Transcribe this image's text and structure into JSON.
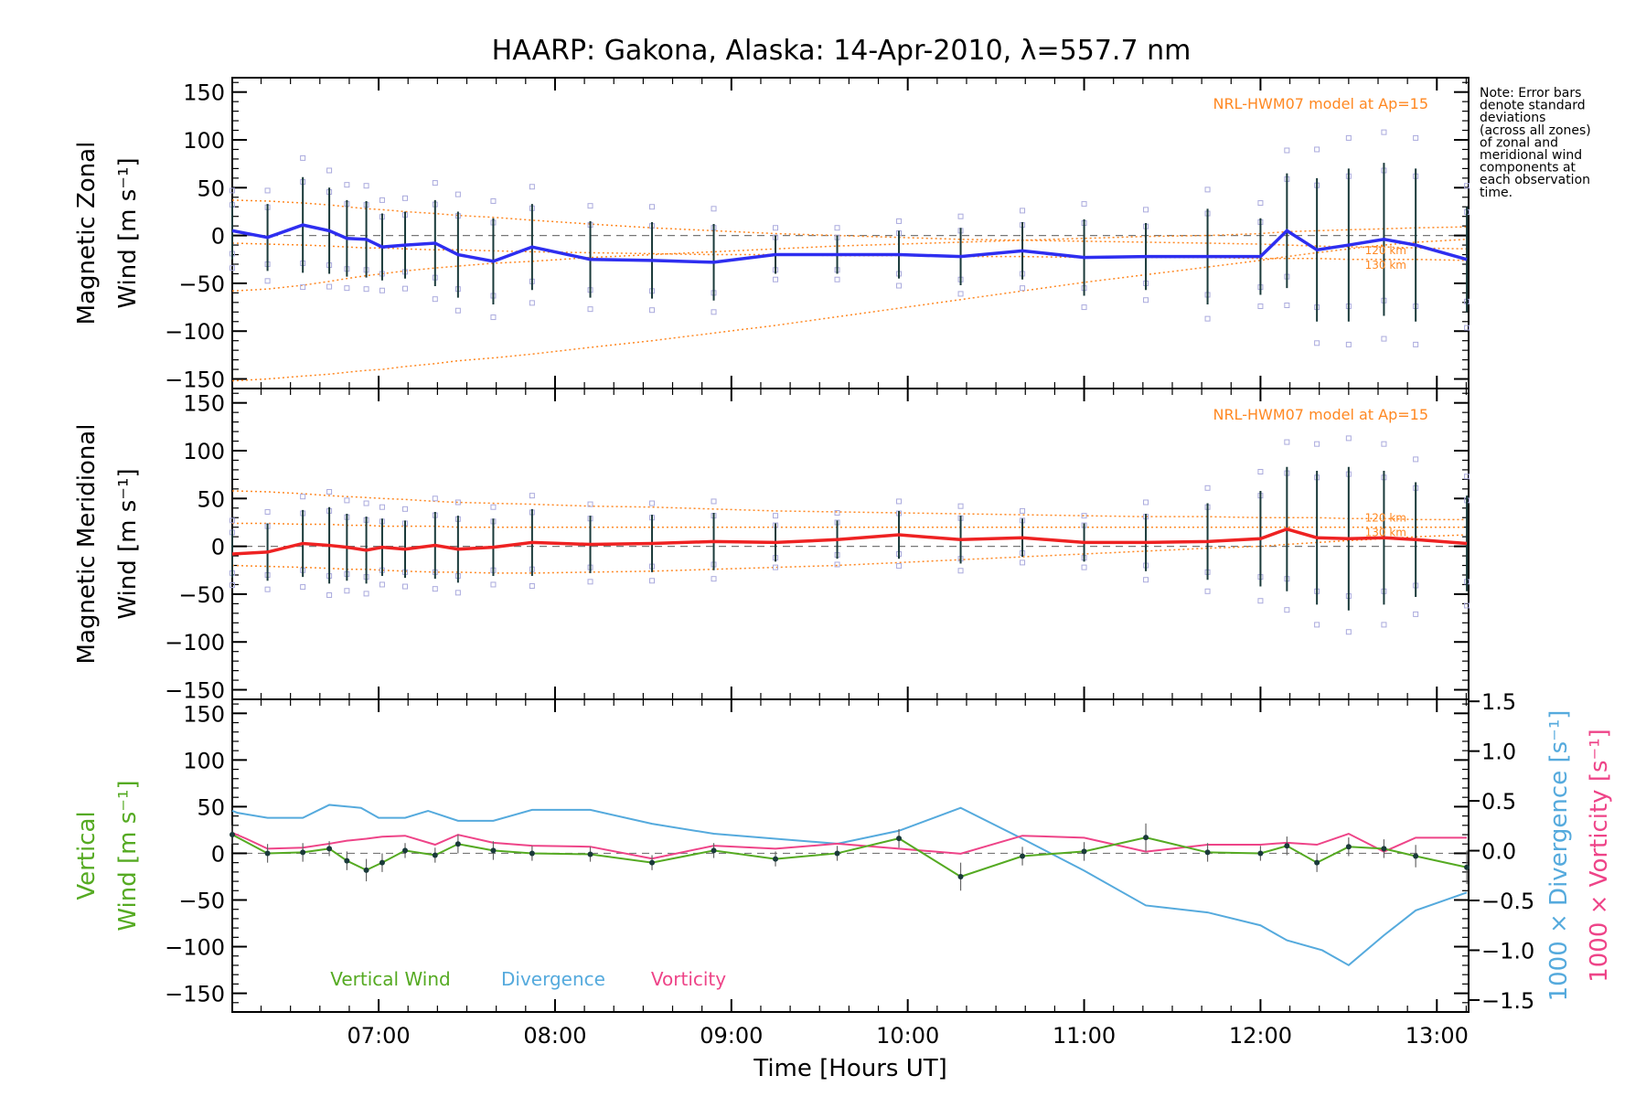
{
  "title": "HAARP: Gakona,  Alaska: 14-Apr-2010, λ=557.7 nm",
  "note": [
    "Note: Error bars",
    "denote standard",
    "deviations",
    "(across all zones)",
    "of zonal and",
    "meridional wind",
    "components at",
    "each observation",
    "time."
  ],
  "colors": {
    "zonal": "#2e2ef0",
    "meridional": "#ee2222",
    "vertical": "#55aa22",
    "divergence": "#55aadd",
    "vorticity": "#ee4488",
    "model": "#ff8822",
    "scatter": "#aaaadd",
    "errorbar": "#1a3a3a"
  },
  "chart_data": [
    {
      "type": "line",
      "panel": "zonal",
      "ylabel": [
        "Magnetic Zonal",
        "Wind [m s⁻¹]"
      ],
      "model_label": "NRL-HWM07 model at Ap=15",
      "model_alt_labels": [
        "120 km",
        "130 km"
      ],
      "ylim": [
        -160,
        165
      ],
      "yticks": [
        -150,
        -100,
        -50,
        0,
        50,
        100,
        150
      ],
      "ytick_labels": [
        "−150",
        "−100",
        "−50",
        "0",
        "50",
        "100",
        "150"
      ],
      "x": [
        6.17,
        6.37,
        6.57,
        6.72,
        6.82,
        6.93,
        7.02,
        7.15,
        7.32,
        7.45,
        7.65,
        7.87,
        8.2,
        8.55,
        8.9,
        9.25,
        9.6,
        9.95,
        10.3,
        10.65,
        11.0,
        11.35,
        11.7,
        12.0,
        12.15,
        12.32,
        12.5,
        12.7,
        12.88,
        13.17
      ],
      "series": [
        {
          "values": [
            5,
            -2,
            11,
            5,
            -3,
            -4,
            -12,
            -10,
            -8,
            -20,
            -27,
            -12,
            -25,
            -26,
            -28,
            -20,
            -20,
            -20,
            -22,
            -16,
            -23,
            -22,
            -22,
            -22,
            5,
            -15,
            -10,
            -4,
            -10,
            -25
          ]
        }
      ],
      "errors": [
        30,
        35,
        50,
        45,
        40,
        40,
        35,
        35,
        45,
        45,
        45,
        45,
        40,
        40,
        40,
        20,
        20,
        25,
        30,
        30,
        40,
        35,
        50,
        40,
        60,
        75,
        80,
        80,
        80,
        55
      ],
      "model": [
        {
          "values": [
            37,
            36,
            34,
            32,
            30,
            28,
            27,
            25,
            23,
            21,
            19,
            16,
            12,
            8,
            5,
            2,
            0,
            -2,
            -4,
            -5,
            -6,
            -7,
            -8,
            -9,
            -10,
            -11,
            -12,
            -12,
            -13,
            -14
          ]
        },
        {
          "values": [
            -8,
            -9,
            -10,
            -11,
            -12,
            -13,
            -13,
            -14,
            -15,
            -15,
            -16,
            -17,
            -18,
            -19,
            -20,
            -20,
            -21,
            -21,
            -22,
            -22,
            -23,
            -23,
            -23,
            -24,
            -24,
            -24,
            -25,
            -25,
            -25,
            -26
          ]
        },
        {
          "values": [
            -58,
            -56,
            -52,
            -48,
            -45,
            -42,
            -40,
            -37,
            -34,
            -32,
            -29,
            -27,
            -23,
            -20,
            -17,
            -14,
            -11,
            -9,
            -7,
            -5,
            -3,
            -1,
            0,
            2,
            4,
            5,
            6,
            7,
            8,
            9
          ]
        },
        {
          "values": [
            -152,
            -150,
            -147,
            -145,
            -143,
            -141,
            -140,
            -137,
            -134,
            -131,
            -128,
            -124,
            -117,
            -110,
            -102,
            -94,
            -85,
            -76,
            -67,
            -58,
            -49,
            -41,
            -33,
            -26,
            -22,
            -18,
            -14,
            -10,
            -7,
            -4
          ]
        }
      ]
    },
    {
      "type": "line",
      "panel": "meridional",
      "ylabel": [
        "Magnetic Meridional",
        "Wind [m s⁻¹]"
      ],
      "model_label": "NRL-HWM07 model at Ap=15",
      "model_alt_labels": [
        "120 km",
        "130 km"
      ],
      "ylim": [
        -160,
        165
      ],
      "yticks": [
        -150,
        -100,
        -50,
        0,
        50,
        100,
        150
      ],
      "ytick_labels": [
        "−150",
        "−100",
        "−50",
        "0",
        "50",
        "100",
        "150"
      ],
      "x": [
        6.17,
        6.37,
        6.57,
        6.72,
        6.82,
        6.93,
        7.02,
        7.15,
        7.32,
        7.45,
        7.65,
        7.87,
        8.2,
        8.55,
        8.9,
        9.25,
        9.6,
        9.95,
        10.3,
        10.65,
        11.0,
        11.35,
        11.7,
        12.0,
        12.15,
        12.32,
        12.5,
        12.7,
        12.88,
        13.17
      ],
      "series": [
        {
          "values": [
            -8,
            -6,
            3,
            1,
            -1,
            -4,
            -1,
            -3,
            1,
            -3,
            -1,
            4,
            2,
            3,
            5,
            4,
            7,
            12,
            7,
            9,
            4,
            4,
            5,
            8,
            18,
            9,
            8,
            9,
            7,
            3
          ]
        }
      ],
      "errors": [
        25,
        30,
        35,
        40,
        35,
        35,
        30,
        30,
        35,
        35,
        30,
        35,
        30,
        30,
        30,
        20,
        20,
        25,
        25,
        20,
        20,
        30,
        40,
        50,
        65,
        70,
        75,
        70,
        60,
        50
      ],
      "model": [
        {
          "values": [
            58,
            57,
            55,
            53,
            52,
            51,
            50,
            49,
            47,
            46,
            45,
            44,
            42,
            41,
            39,
            37,
            36,
            35,
            34,
            33,
            32,
            31,
            31,
            30,
            30,
            30,
            29,
            29,
            28,
            28
          ]
        },
        {
          "values": [
            24,
            24,
            23,
            23,
            22,
            22,
            21,
            21,
            21,
            20,
            20,
            20,
            20,
            20,
            20,
            20,
            20,
            20,
            20,
            20,
            20,
            20,
            20,
            20,
            20,
            20,
            20,
            20,
            20,
            20
          ]
        },
        {
          "values": [
            -20,
            -21,
            -22,
            -23,
            -24,
            -24,
            -25,
            -26,
            -27,
            -27,
            -28,
            -28,
            -27,
            -26,
            -24,
            -22,
            -20,
            -17,
            -14,
            -11,
            -8,
            -5,
            -2,
            0,
            2,
            4,
            6,
            8,
            10,
            12
          ]
        }
      ]
    },
    {
      "type": "line",
      "panel": "vertical",
      "ylabel_left": [
        "Vertical",
        "Wind [m s⁻¹]"
      ],
      "ylabel_right1": "1000 × Divergence [s⁻¹]",
      "ylabel_right2": "1000 × Vorticity [s⁻¹]",
      "ylim": [
        -170,
        165
      ],
      "yticks": [
        -150,
        -100,
        -50,
        0,
        50,
        100,
        150
      ],
      "ytick_labels": [
        "−150",
        "−100",
        "−50",
        "0",
        "50",
        "100",
        "150"
      ],
      "y2lim": [
        -1.62,
        1.52
      ],
      "y2ticks": [
        -1.5,
        -1.0,
        -0.5,
        0.0,
        0.5,
        1.0,
        1.5
      ],
      "y2tick_labels": [
        "−1.5",
        "−1.0",
        "−0.5",
        "0.0",
        "0.5",
        "1.0",
        "1.5"
      ],
      "xlim": [
        6.17,
        13.18
      ],
      "xticks": [
        7,
        8,
        9,
        10,
        11,
        12,
        13
      ],
      "xtick_labels": [
        "07:00",
        "08:00",
        "09:00",
        "10:00",
        "11:00",
        "12:00",
        "13:00"
      ],
      "xlabel": "Time [Hours UT]",
      "legend": [
        "Vertical Wind",
        "Divergence",
        "Vorticity"
      ],
      "series": [
        {
          "name": "Vertical Wind",
          "x": [
            6.17,
            6.37,
            6.57,
            6.72,
            6.82,
            6.93,
            7.02,
            7.15,
            7.32,
            7.45,
            7.65,
            7.87,
            8.2,
            8.55,
            8.9,
            9.25,
            9.6,
            9.95,
            10.3,
            10.65,
            11.0,
            11.35,
            11.7,
            12.0,
            12.15,
            12.32,
            12.5,
            12.7,
            12.88,
            13.17
          ],
          "values": [
            20,
            0,
            1,
            5,
            -8,
            -18,
            -10,
            3,
            -2,
            10,
            3,
            0,
            -1,
            -10,
            3,
            -6,
            0,
            16,
            -25,
            -3,
            2,
            17,
            1,
            0,
            8,
            -10,
            7,
            5,
            -3,
            -15
          ],
          "errors": [
            10,
            10,
            10,
            8,
            10,
            12,
            10,
            8,
            8,
            10,
            10,
            8,
            8,
            8,
            8,
            8,
            8,
            10,
            15,
            10,
            10,
            15,
            10,
            8,
            10,
            10,
            10,
            10,
            12,
            18
          ]
        },
        {
          "name": "Divergence",
          "x": [
            6.17,
            6.2,
            6.37,
            6.57,
            6.72,
            6.9,
            7.0,
            7.15,
            7.28,
            7.45,
            7.65,
            7.87,
            8.2,
            8.55,
            8.9,
            9.25,
            9.6,
            9.95,
            10.3,
            10.65,
            11.0,
            11.35,
            11.7,
            12.0,
            12.15,
            12.35,
            12.5,
            12.7,
            12.88,
            13.17
          ],
          "values": [
            0.4,
            0.38,
            0.33,
            0.33,
            0.46,
            0.43,
            0.33,
            0.33,
            0.4,
            0.3,
            0.3,
            0.41,
            0.41,
            0.27,
            0.17,
            0.12,
            0.07,
            0.2,
            0.43,
            0.12,
            -0.2,
            -0.55,
            -0.62,
            -0.75,
            -0.9,
            -1.0,
            -1.15,
            -0.85,
            -0.6,
            -0.42
          ]
        },
        {
          "name": "Vorticity",
          "x": [
            6.17,
            6.25,
            6.37,
            6.57,
            6.72,
            6.82,
            6.93,
            7.02,
            7.15,
            7.32,
            7.45,
            7.65,
            7.87,
            8.2,
            8.55,
            8.9,
            9.25,
            9.6,
            9.95,
            10.3,
            10.65,
            11.0,
            11.35,
            11.7,
            12.0,
            12.15,
            12.32,
            12.5,
            12.7,
            12.88,
            13.17
          ],
          "values": [
            0.18,
            0.12,
            0.02,
            0.03,
            0.07,
            0.1,
            0.12,
            0.14,
            0.15,
            0.06,
            0.16,
            0.08,
            0.05,
            0.04,
            -0.08,
            0.05,
            0.02,
            0.07,
            0.02,
            -0.03,
            0.15,
            0.13,
            -0.01,
            0.06,
            0.06,
            0.08,
            0.06,
            0.17,
            -0.01,
            0.13,
            0.13
          ]
        }
      ]
    }
  ]
}
